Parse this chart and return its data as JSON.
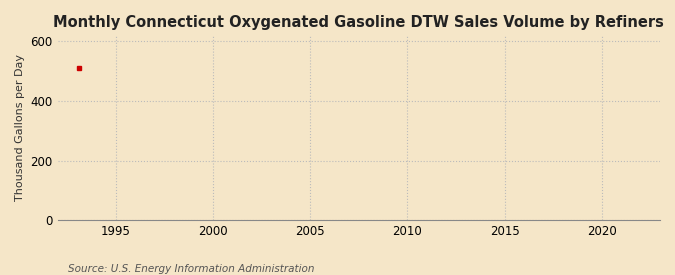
{
  "title": "Monthly Connecticut Oxygenated Gasoline DTW Sales Volume by Refiners",
  "ylabel": "Thousand Gallons per Day",
  "source": "Source: U.S. Energy Information Administration",
  "background_color": "#f5e6c8",
  "plot_background_color": "#f5e6c8",
  "grid_color": "#bbbbbb",
  "data_point_x": 1993.1,
  "data_point_y": 512,
  "data_point_color": "#cc0000",
  "xlim": [
    1992.0,
    2023.0
  ],
  "ylim": [
    0,
    620
  ],
  "xticks": [
    1995,
    2000,
    2005,
    2010,
    2015,
    2020
  ],
  "yticks": [
    0,
    200,
    400,
    600
  ],
  "title_fontsize": 10.5,
  "label_fontsize": 8,
  "tick_fontsize": 8.5,
  "source_fontsize": 7.5
}
